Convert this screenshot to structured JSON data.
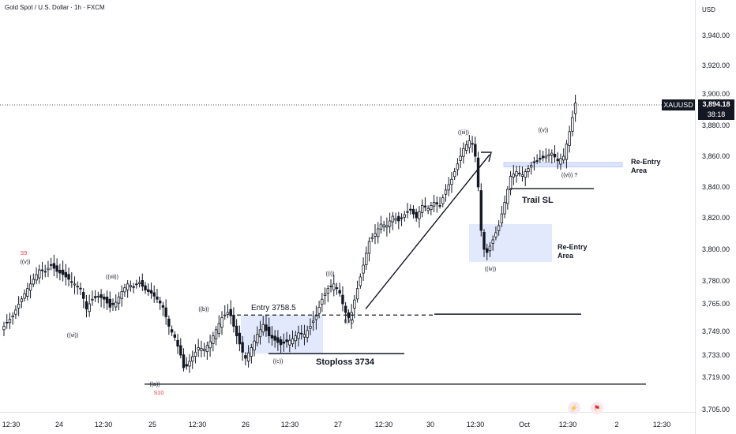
{
  "header": {
    "title": "Gold Spot / U.S. Dollar · 1h · FXCM"
  },
  "price_axis": {
    "currency": "USD",
    "symbol_tag": "XAUUSD",
    "last_price": "3,894.18",
    "countdown": "38:18"
  },
  "event_icons": [
    "lightning-event-icon",
    "us-flag-event-icon"
  ],
  "colors": {
    "up": "#089981",
    "down": "#f23645",
    "candle": "#131722",
    "zone": "#dbe4fb"
  },
  "chart_data": {
    "type": "candlestick",
    "symbol": "XAUUSD",
    "timeframe": "1h",
    "y_ticks": [
      3705,
      3719,
      3733,
      3749,
      3765,
      3780,
      3800,
      3820,
      3840,
      3860,
      3880,
      3900,
      3920,
      3940
    ],
    "y_tick_labels": [
      "3,705.00",
      "3,719.00",
      "3,733.00",
      "3,749.00",
      "3,765.00",
      "3,780.00",
      "3,800.00",
      "3,820.00",
      "3,840.00",
      "3,860.00",
      "3,880.00",
      "3,900.00",
      "3,920.00",
      "3,940.00"
    ],
    "x_ticks": [
      "12:30",
      "24",
      "12:30",
      "25",
      "12:30",
      "26",
      "12:30",
      "27",
      "12:30",
      "30",
      "12:30",
      "Oct",
      "12:30",
      "2",
      "12:30"
    ],
    "close_path": [
      [
        0,
        3752
      ],
      [
        3,
        3758
      ],
      [
        8,
        3775
      ],
      [
        12,
        3787
      ],
      [
        14,
        3786
      ],
      [
        16,
        3790
      ],
      [
        18,
        3786
      ],
      [
        20,
        3784
      ],
      [
        24,
        3778
      ],
      [
        26,
        3775
      ],
      [
        28,
        3762
      ],
      [
        30,
        3768
      ],
      [
        32,
        3770
      ],
      [
        34,
        3768
      ],
      [
        36,
        3763
      ],
      [
        38,
        3766
      ],
      [
        40,
        3773
      ],
      [
        42,
        3778
      ],
      [
        44,
        3776
      ],
      [
        46,
        3779
      ],
      [
        48,
        3774
      ],
      [
        50,
        3772
      ],
      [
        52,
        3768
      ],
      [
        54,
        3763
      ],
      [
        56,
        3752
      ],
      [
        58,
        3745
      ],
      [
        60,
        3733
      ],
      [
        61,
        3725
      ],
      [
        62,
        3726
      ],
      [
        64,
        3732
      ],
      [
        66,
        3738
      ],
      [
        68,
        3737
      ],
      [
        70,
        3742
      ],
      [
        72,
        3750
      ],
      [
        74,
        3757
      ],
      [
        76,
        3760
      ],
      [
        77,
        3758
      ],
      [
        79,
        3746
      ],
      [
        81,
        3735
      ],
      [
        82,
        3731
      ],
      [
        84,
        3738
      ],
      [
        86,
        3747
      ],
      [
        88,
        3753
      ],
      [
        90,
        3746
      ],
      [
        92,
        3743
      ],
      [
        94,
        3740
      ],
      [
        96,
        3742
      ],
      [
        98,
        3744
      ],
      [
        100,
        3748
      ],
      [
        102,
        3747
      ],
      [
        104,
        3752
      ],
      [
        106,
        3758
      ],
      [
        108,
        3768
      ],
      [
        110,
        3775
      ],
      [
        112,
        3778
      ],
      [
        114,
        3772
      ],
      [
        115,
        3765
      ],
      [
        116,
        3760
      ],
      [
        117,
        3757
      ],
      [
        118,
        3760
      ],
      [
        120,
        3775
      ],
      [
        122,
        3790
      ],
      [
        124,
        3805
      ],
      [
        126,
        3810
      ],
      [
        128,
        3816
      ],
      [
        130,
        3815
      ],
      [
        132,
        3821
      ],
      [
        134,
        3818
      ],
      [
        136,
        3822
      ],
      [
        138,
        3825
      ],
      [
        140,
        3820
      ],
      [
        142,
        3828
      ],
      [
        144,
        3826
      ],
      [
        146,
        3830
      ],
      [
        148,
        3828
      ],
      [
        150,
        3838
      ],
      [
        152,
        3845
      ],
      [
        154,
        3855
      ],
      [
        156,
        3865
      ],
      [
        158,
        3870
      ],
      [
        159,
        3868
      ],
      [
        160,
        3860
      ],
      [
        161,
        3840
      ],
      [
        162,
        3812
      ],
      [
        163,
        3800
      ],
      [
        164,
        3798
      ],
      [
        166,
        3806
      ],
      [
        168,
        3815
      ],
      [
        170,
        3830
      ],
      [
        172,
        3847
      ],
      [
        174,
        3850
      ],
      [
        176,
        3848
      ],
      [
        178,
        3852
      ],
      [
        180,
        3856
      ],
      [
        182,
        3858
      ],
      [
        184,
        3860
      ],
      [
        186,
        3862
      ],
      [
        188,
        3857
      ],
      [
        190,
        3860
      ],
      [
        192,
        3876
      ],
      [
        194,
        3894.18
      ]
    ],
    "annotations": [
      "S9",
      "((v))",
      "((vii))",
      "((vi))",
      "((b))",
      "((a))",
      "S10",
      "((i))",
      "((ii))",
      "((c))",
      "((iii))",
      "((iv))",
      "((v))",
      "((vi)) ?",
      "Entry 3758.5",
      "Stoploss 3734",
      "Trail SL",
      "Re-Entry Area",
      "Re-Entry Area"
    ],
    "levels": {
      "entry": 3758.5,
      "stoploss": 3734,
      "trail_sl": 3839,
      "low_line": 3716
    }
  }
}
